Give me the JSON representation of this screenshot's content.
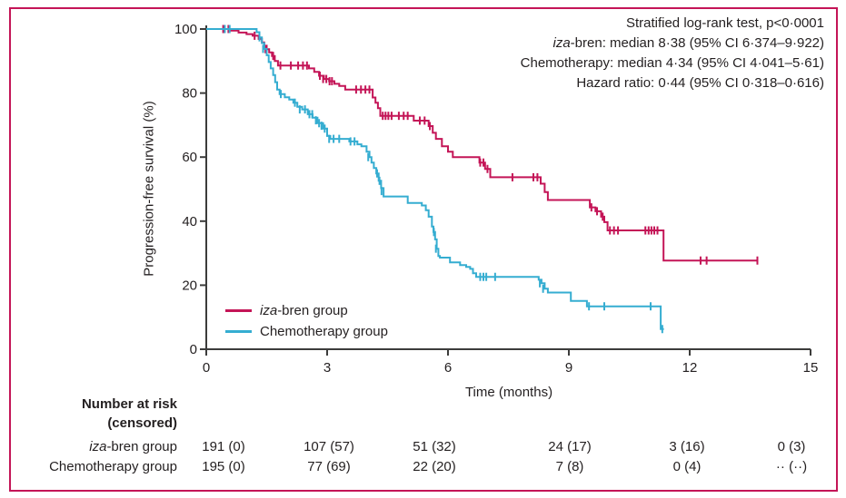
{
  "figure": {
    "border_color": "#C41557",
    "axes_color": "#3C3C3B",
    "text_color": "#231F20"
  },
  "annotation": {
    "line1": "Stratified log-rank test, p<0·0001",
    "line2_italic": "iza",
    "line2_rest": "-bren: median 8·38 (95% CI 6·374–9·922)",
    "line3": "Chemotherapy: median 4·34 (95% CI 4·041–5·61)",
    "line4": "Hazard ratio: 0·44 (95% CI 0·318–0·616)"
  },
  "chart_data": {
    "type": "line",
    "subtype": "kaplan-meier-step",
    "title": "",
    "xlabel": "Time (months)",
    "ylabel": "Progression-free survival (%)",
    "xlim": [
      0,
      15
    ],
    "ylim": [
      0,
      100
    ],
    "xticks": [
      0,
      3,
      6,
      9,
      12,
      15
    ],
    "yticks": [
      0,
      20,
      40,
      60,
      80,
      100
    ],
    "grid": false,
    "legend_position": "inside-lower-left",
    "series": [
      {
        "name": "iza-bren group",
        "name_italic_prefix": "iza",
        "name_rest": "-bren group",
        "color": "#C41557",
        "steps": [
          [
            0,
            100
          ],
          [
            0.6,
            99.5
          ],
          [
            0.8,
            98.9
          ],
          [
            1.0,
            98.4
          ],
          [
            1.15,
            97.9
          ],
          [
            1.3,
            96.9
          ],
          [
            1.38,
            95.8
          ],
          [
            1.44,
            94.8
          ],
          [
            1.5,
            93.7
          ],
          [
            1.56,
            92.7
          ],
          [
            1.63,
            91.6
          ],
          [
            1.7,
            90.0
          ],
          [
            1.78,
            88.6
          ],
          [
            2.55,
            87.7
          ],
          [
            2.68,
            86.6
          ],
          [
            2.8,
            85.4
          ],
          [
            2.92,
            84.4
          ],
          [
            3.05,
            83.7
          ],
          [
            3.18,
            82.9
          ],
          [
            3.3,
            82.2
          ],
          [
            3.45,
            81.1
          ],
          [
            4.13,
            78.6
          ],
          [
            4.2,
            77.0
          ],
          [
            4.26,
            75.3
          ],
          [
            4.32,
            72.9
          ],
          [
            5.15,
            71.4
          ],
          [
            5.52,
            69.7
          ],
          [
            5.62,
            67.6
          ],
          [
            5.7,
            65.7
          ],
          [
            5.85,
            63.4
          ],
          [
            6.0,
            61.7
          ],
          [
            6.12,
            60.0
          ],
          [
            6.78,
            58.3
          ],
          [
            6.92,
            56.3
          ],
          [
            7.05,
            53.7
          ],
          [
            8.3,
            51.7
          ],
          [
            8.4,
            49.1
          ],
          [
            8.48,
            46.6
          ],
          [
            9.52,
            44.3
          ],
          [
            9.66,
            43.1
          ],
          [
            9.8,
            41.4
          ],
          [
            9.88,
            39.7
          ],
          [
            9.96,
            37.1
          ],
          [
            11.35,
            27.7
          ],
          [
            13.68,
            27.7
          ]
        ],
        "censors": [
          [
            0.42,
            100
          ],
          [
            0.55,
            100
          ],
          [
            1.2,
            97.9
          ],
          [
            1.47,
            93.7
          ],
          [
            1.66,
            91.6
          ],
          [
            1.84,
            88.6
          ],
          [
            2.1,
            88.6
          ],
          [
            2.28,
            88.6
          ],
          [
            2.4,
            88.6
          ],
          [
            2.5,
            88.6
          ],
          [
            2.82,
            85.4
          ],
          [
            2.9,
            84.4
          ],
          [
            2.98,
            84.4
          ],
          [
            3.06,
            83.7
          ],
          [
            3.12,
            83.7
          ],
          [
            3.72,
            81.1
          ],
          [
            3.84,
            81.1
          ],
          [
            3.95,
            81.1
          ],
          [
            4.05,
            81.1
          ],
          [
            4.38,
            72.9
          ],
          [
            4.45,
            72.9
          ],
          [
            4.52,
            72.9
          ],
          [
            4.6,
            72.9
          ],
          [
            4.78,
            72.9
          ],
          [
            4.9,
            72.9
          ],
          [
            5.0,
            72.9
          ],
          [
            5.3,
            71.4
          ],
          [
            5.42,
            71.4
          ],
          [
            5.55,
            69.7
          ],
          [
            6.8,
            58.3
          ],
          [
            6.88,
            58.3
          ],
          [
            6.98,
            56.3
          ],
          [
            7.6,
            53.7
          ],
          [
            8.12,
            53.7
          ],
          [
            8.22,
            53.7
          ],
          [
            9.56,
            44.3
          ],
          [
            9.7,
            43.1
          ],
          [
            9.84,
            41.4
          ],
          [
            10.02,
            37.1
          ],
          [
            10.12,
            37.1
          ],
          [
            10.22,
            37.1
          ],
          [
            10.9,
            37.1
          ],
          [
            10.98,
            37.1
          ],
          [
            11.05,
            37.1
          ],
          [
            11.12,
            37.1
          ],
          [
            11.2,
            37.1
          ],
          [
            12.27,
            27.7
          ],
          [
            12.42,
            27.7
          ],
          [
            13.68,
            27.7
          ]
        ]
      },
      {
        "name": "Chemotherapy group",
        "name_italic_prefix": "",
        "name_rest": "Chemotherapy group",
        "color": "#35ADD1",
        "steps": [
          [
            0,
            100
          ],
          [
            1.25,
            99.0
          ],
          [
            1.32,
            97.4
          ],
          [
            1.38,
            95.6
          ],
          [
            1.44,
            93.8
          ],
          [
            1.5,
            91.8
          ],
          [
            1.55,
            89.7
          ],
          [
            1.6,
            87.7
          ],
          [
            1.66,
            85.6
          ],
          [
            1.71,
            83.4
          ],
          [
            1.76,
            81.1
          ],
          [
            1.82,
            79.7
          ],
          [
            1.95,
            78.7
          ],
          [
            2.06,
            78.0
          ],
          [
            2.16,
            77.0
          ],
          [
            2.26,
            75.7
          ],
          [
            2.38,
            74.9
          ],
          [
            2.52,
            73.4
          ],
          [
            2.64,
            72.3
          ],
          [
            2.76,
            70.6
          ],
          [
            2.9,
            68.9
          ],
          [
            3.0,
            66.6
          ],
          [
            3.08,
            65.7
          ],
          [
            3.55,
            64.9
          ],
          [
            3.75,
            64.0
          ],
          [
            3.85,
            63.4
          ],
          [
            3.98,
            61.7
          ],
          [
            4.05,
            60.0
          ],
          [
            4.1,
            58.3
          ],
          [
            4.16,
            56.6
          ],
          [
            4.22,
            54.9
          ],
          [
            4.28,
            52.6
          ],
          [
            4.34,
            50.3
          ],
          [
            4.4,
            47.7
          ],
          [
            5.0,
            45.7
          ],
          [
            5.35,
            44.9
          ],
          [
            5.45,
            43.4
          ],
          [
            5.52,
            41.4
          ],
          [
            5.6,
            38.3
          ],
          [
            5.64,
            36.6
          ],
          [
            5.68,
            34.3
          ],
          [
            5.72,
            31.4
          ],
          [
            5.76,
            29.1
          ],
          [
            5.8,
            28.6
          ],
          [
            6.05,
            27.1
          ],
          [
            6.3,
            26.3
          ],
          [
            6.45,
            25.7
          ],
          [
            6.55,
            25.1
          ],
          [
            6.62,
            23.7
          ],
          [
            6.7,
            22.6
          ],
          [
            8.25,
            21.7
          ],
          [
            8.32,
            20.6
          ],
          [
            8.4,
            18.9
          ],
          [
            8.48,
            17.7
          ],
          [
            9.05,
            15.1
          ],
          [
            9.45,
            13.4
          ],
          [
            11.28,
            6.3
          ],
          [
            11.36,
            6.3
          ]
        ],
        "censors": [
          [
            0.46,
            100
          ],
          [
            0.58,
            100
          ],
          [
            1.32,
            97.4
          ],
          [
            1.41,
            93.8
          ],
          [
            1.85,
            79.7
          ],
          [
            2.2,
            77.0
          ],
          [
            2.32,
            74.9
          ],
          [
            2.45,
            74.9
          ],
          [
            2.56,
            73.4
          ],
          [
            2.63,
            73.4
          ],
          [
            2.72,
            71.5
          ],
          [
            2.8,
            70.6
          ],
          [
            2.86,
            69.8
          ],
          [
            2.94,
            68.9
          ],
          [
            3.05,
            65.7
          ],
          [
            3.16,
            65.7
          ],
          [
            3.3,
            65.7
          ],
          [
            3.58,
            64.9
          ],
          [
            3.68,
            64.9
          ],
          [
            4.02,
            60.0
          ],
          [
            4.24,
            54.9
          ],
          [
            4.3,
            52.6
          ],
          [
            4.35,
            49.4
          ],
          [
            5.65,
            36.6
          ],
          [
            5.7,
            31.4
          ],
          [
            6.8,
            22.6
          ],
          [
            6.88,
            22.6
          ],
          [
            6.95,
            22.6
          ],
          [
            7.17,
            22.6
          ],
          [
            8.28,
            20.6
          ],
          [
            8.36,
            18.9
          ],
          [
            9.5,
            13.4
          ],
          [
            9.88,
            13.4
          ],
          [
            11.03,
            13.4
          ],
          [
            11.32,
            6.3
          ]
        ]
      }
    ]
  },
  "risk_table": {
    "header_line1": "Number at risk",
    "header_line2": "(censored)",
    "rows": [
      {
        "label_italic": "iza",
        "label_rest": "-bren group",
        "values": [
          "191 (0)",
          "107 (57)",
          "51 (32)",
          "24 (17)",
          "3 (16)",
          "0 (3)"
        ]
      },
      {
        "label_italic": "",
        "label_rest": "Chemotherapy group",
        "values": [
          "195 (0)",
          "77 (69)",
          "22 (20)",
          "7 (8)",
          "0 (4)",
          "·· (··)"
        ]
      }
    ]
  }
}
